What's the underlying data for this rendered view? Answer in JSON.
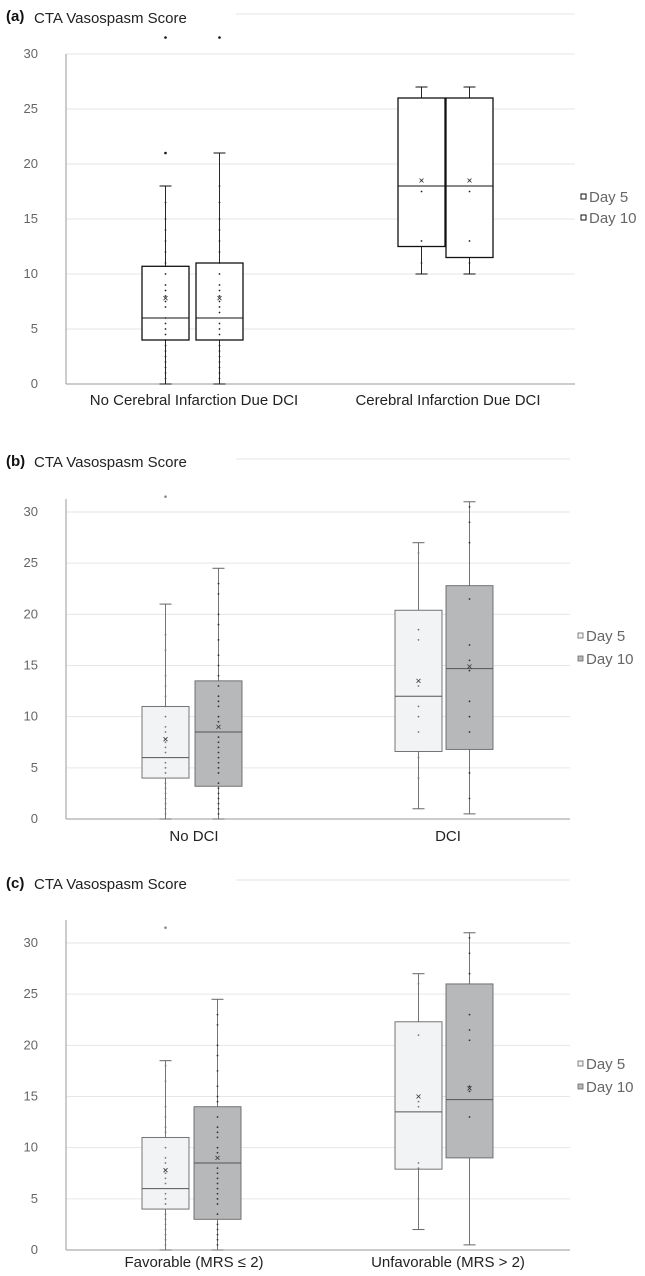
{
  "colors": {
    "grid": "#e6e6e6",
    "axis": "#9a9a9a",
    "box_stroke_dark": "#111111",
    "box_stroke_light": "#666666",
    "day5_fill_light": "#f2f3f4",
    "day10_fill_dark": "#b7b8ba",
    "white": "#ffffff"
  },
  "chart_data": [
    {
      "type": "box",
      "panel_label": "(a)",
      "title": "CTA Vasospasm Score",
      "xlabel": "",
      "ylabel": "",
      "ylim": [
        0,
        33
      ],
      "yticks": [
        0,
        5,
        10,
        15,
        20,
        25,
        30
      ],
      "grid": true,
      "legend_position": "right",
      "categories": [
        "No Cerebral Infarction Due DCI",
        "Cerebral Infarction Due DCI"
      ],
      "series": [
        {
          "name": "Day 5",
          "boxes": [
            {
              "min": 0,
              "q1": 4,
              "median": 6,
              "q3": 10.7,
              "max": 18,
              "mean": 7.8,
              "outliers": [
                21,
                31.5
              ],
              "points": [
                0.5,
                1,
                1.5,
                2,
                2.5,
                3,
                3.5,
                4,
                4.5,
                5,
                5.5,
                6,
                7,
                7.5,
                8,
                8.5,
                9,
                10,
                11,
                12,
                13,
                14,
                15,
                16.5
              ]
            },
            {
              "min": 10,
              "q1": 12.5,
              "median": 18,
              "q3": 26,
              "max": 27,
              "mean": 18.5,
              "outliers": [],
              "points": [
                11,
                13,
                17.5,
                18.5
              ]
            }
          ]
        },
        {
          "name": "Day 10",
          "boxes": [
            {
              "min": 0,
              "q1": 4,
              "median": 6,
              "q3": 11,
              "max": 21,
              "mean": 7.8,
              "outliers": [
                31.5
              ],
              "points": [
                0.5,
                1,
                1.5,
                2,
                2.5,
                3,
                3.5,
                4.5,
                5,
                5.5,
                6.5,
                7,
                7.5,
                8,
                8.5,
                9,
                10,
                11,
                12,
                13,
                14,
                15,
                16.5,
                18
              ]
            },
            {
              "min": 10,
              "q1": 11.5,
              "median": 18,
              "q3": 26,
              "max": 27,
              "mean": 18.5,
              "outliers": [],
              "points": [
                11,
                13,
                17.5,
                18.5
              ]
            }
          ]
        }
      ]
    },
    {
      "type": "box",
      "panel_label": "(b)",
      "title": "CTA Vasospasm Score",
      "xlabel": "",
      "ylabel": "",
      "ylim": [
        0,
        33
      ],
      "yticks": [
        0,
        5,
        10,
        15,
        20,
        25,
        30
      ],
      "grid": true,
      "legend_position": "right",
      "categories": [
        "No DCI",
        "DCI"
      ],
      "series": [
        {
          "name": "Day 5",
          "boxes": [
            {
              "min": 0,
              "q1": 4,
              "median": 6,
              "q3": 11,
              "max": 21,
              "mean": 7.8,
              "outliers": [
                31.5
              ],
              "points": [
                0.5,
                1,
                1.5,
                2,
                2.5,
                3,
                3.5,
                4.5,
                5,
                5.5,
                6.5,
                7,
                7.5,
                8.5,
                9,
                10,
                11,
                12,
                13,
                14,
                16.5,
                18
              ]
            },
            {
              "min": 1,
              "q1": 6.6,
              "median": 12,
              "q3": 20.4,
              "max": 27,
              "mean": 13.5,
              "outliers": [],
              "points": [
                4,
                6,
                8.5,
                10,
                11,
                13,
                17.5,
                18.5,
                26
              ]
            }
          ]
        },
        {
          "name": "Day 10",
          "boxes": [
            {
              "min": 0,
              "q1": 3.2,
              "median": 8.5,
              "q3": 13.5,
              "max": 24.5,
              "mean": 9,
              "outliers": [],
              "points": [
                0.5,
                1,
                1.5,
                2,
                2.5,
                3,
                3.5,
                4.5,
                5,
                5.5,
                6,
                6.5,
                7,
                7.5,
                8,
                9.5,
                10,
                11,
                11.5,
                12,
                13,
                14,
                15,
                16,
                17.5,
                19,
                20,
                22,
                23
              ]
            },
            {
              "min": 0.5,
              "q1": 6.8,
              "median": 14.7,
              "q3": 22.8,
              "max": 31,
              "mean": 14.9,
              "outliers": [],
              "points": [
                2,
                4.5,
                8.5,
                10,
                11.5,
                14.5,
                15.5,
                17,
                21.5,
                27,
                29,
                30.5
              ]
            }
          ]
        }
      ]
    },
    {
      "type": "box",
      "panel_label": "(c)",
      "title": "CTA Vasospasm Score",
      "xlabel": "",
      "ylabel": "",
      "ylim": [
        0,
        33
      ],
      "yticks": [
        0,
        5,
        10,
        15,
        20,
        25,
        30
      ],
      "grid": true,
      "legend_position": "right",
      "categories": [
        "Favorable (MRS ≤ 2)",
        "Unfavorable (MRS > 2)"
      ],
      "series": [
        {
          "name": "Day 5",
          "boxes": [
            {
              "min": 0,
              "q1": 4,
              "median": 6,
              "q3": 11,
              "max": 18.5,
              "mean": 7.8,
              "outliers": [
                31.5
              ],
              "points": [
                0.5,
                1,
                1.5,
                2,
                2.5,
                3,
                3.5,
                4.5,
                5,
                5.5,
                6.5,
                7,
                7.5,
                8.5,
                9,
                10,
                11.5,
                12,
                13,
                14,
                16.5,
                18
              ]
            },
            {
              "min": 2,
              "q1": 7.9,
              "median": 13.5,
              "q3": 22.3,
              "max": 27,
              "mean": 15,
              "outliers": [],
              "points": [
                5,
                8,
                8.5,
                14,
                14.5,
                21,
                26
              ]
            }
          ]
        },
        {
          "name": "Day 10",
          "boxes": [
            {
              "min": 0,
              "q1": 3,
              "median": 8.5,
              "q3": 14,
              "max": 24.5,
              "mean": 9,
              "outliers": [],
              "points": [
                0.5,
                1,
                1.5,
                2,
                2.5,
                3.5,
                4.5,
                5,
                5.5,
                6,
                6.5,
                7,
                7.5,
                8,
                9.5,
                10,
                11,
                11.5,
                12,
                13,
                14.5,
                15,
                16,
                17.5,
                19,
                20,
                22,
                23
              ]
            },
            {
              "min": 0.5,
              "q1": 9,
              "median": 14.7,
              "q3": 26,
              "max": 31,
              "mean": 15.8,
              "outliers": [],
              "points": [
                13,
                15.5,
                16,
                20.5,
                21.5,
                23,
                27,
                29,
                30.5
              ]
            }
          ]
        }
      ]
    }
  ]
}
